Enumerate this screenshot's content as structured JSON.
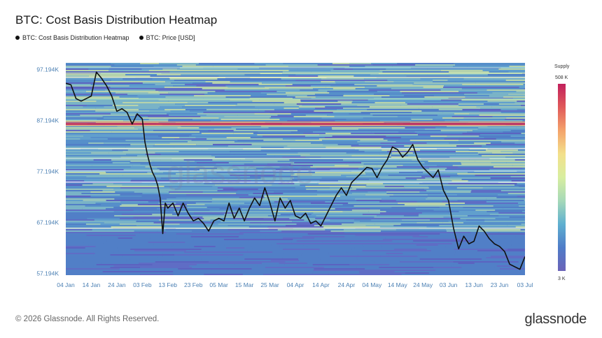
{
  "header": {
    "title": "BTC: Cost Basis Distribution Heatmap"
  },
  "legend": {
    "items": [
      {
        "label": "BTC: Cost Basis Distribution Heatmap",
        "color": "#111111"
      },
      {
        "label": "BTC: Price [USD]",
        "color": "#111111"
      }
    ]
  },
  "watermark": "glassnode",
  "footer": {
    "copyright": "© 2026 Glassnode. All Rights Reserved.",
    "logo": "glassnode"
  },
  "colorbar": {
    "title": "Supply",
    "max_label": "508 K",
    "min_label": "3 K",
    "colors": [
      "#c2205c",
      "#e05a5a",
      "#f4a36b",
      "#f3e08b",
      "#d8eea0",
      "#a6d9b8",
      "#5fb0d0",
      "#4f7cc8",
      "#6b63b8"
    ]
  },
  "chart_data": {
    "type": "heatmap",
    "title": "BTC: Cost Basis Distribution Heatmap",
    "x_ticks": [
      "04 Jan",
      "14 Jan",
      "24 Jan",
      "03 Feb",
      "13 Feb",
      "23 Feb",
      "05 Mar",
      "15 Mar",
      "25 Mar",
      "04 Apr",
      "14 Apr",
      "24 Apr",
      "04 May",
      "14 May",
      "24 May",
      "03 Jun",
      "13 Jun",
      "23 Jun",
      "03 Jul"
    ],
    "y_ticks": [
      "97.194K",
      "87.194K",
      "77.194K",
      "67.194K",
      "57.194K"
    ],
    "y_tick_values": [
      97194,
      87194,
      77194,
      67194,
      57194
    ],
    "ylim": [
      57194,
      97194
    ],
    "xlim": [
      0,
      180
    ],
    "price_series": {
      "name": "BTC: Price [USD]",
      "x": [
        0,
        2,
        4,
        6,
        8,
        10,
        12,
        14,
        16,
        18,
        20,
        22,
        24,
        26,
        28,
        30,
        31,
        32,
        33,
        34,
        35,
        36,
        37,
        38,
        39,
        40,
        42,
        44,
        46,
        48,
        50,
        52,
        54,
        56,
        58,
        60,
        62,
        64,
        66,
        68,
        70,
        72,
        74,
        76,
        78,
        80,
        82,
        84,
        86,
        88,
        90,
        92,
        94,
        96,
        98,
        100,
        102,
        104,
        106,
        108,
        110,
        112,
        114,
        116,
        118,
        120,
        122,
        124,
        126,
        128,
        130,
        132,
        134,
        136,
        138,
        140,
        142,
        144,
        146,
        148,
        150,
        152,
        154,
        156,
        158,
        160,
        162,
        164,
        166,
        168,
        170,
        172,
        174,
        176,
        178,
        180
      ],
      "y": [
        94500,
        94200,
        91500,
        91000,
        91500,
        92000,
        96700,
        95500,
        94000,
        92000,
        89000,
        89500,
        88800,
        86500,
        88500,
        87500,
        83000,
        80500,
        78500,
        77000,
        76000,
        74500,
        72000,
        65000,
        71000,
        70000,
        71000,
        68500,
        71000,
        69000,
        67500,
        68000,
        67000,
        65500,
        67500,
        68000,
        67500,
        71000,
        68000,
        70000,
        67500,
        70000,
        72000,
        70500,
        74000,
        71000,
        67500,
        72000,
        70000,
        71500,
        68500,
        68000,
        69000,
        67000,
        67500,
        66500,
        68500,
        70500,
        72500,
        74000,
        72500,
        75000,
        76000,
        77000,
        78000,
        77800,
        76000,
        78000,
        79500,
        82000,
        81500,
        80000,
        81000,
        82500,
        79500,
        78000,
        77000,
        76000,
        77500,
        73500,
        71500,
        66000,
        62000,
        64500,
        63000,
        63500,
        66500,
        65500,
        64000,
        63000,
        62500,
        61500,
        59000,
        58500,
        58000,
        60500
      ]
    }
  }
}
